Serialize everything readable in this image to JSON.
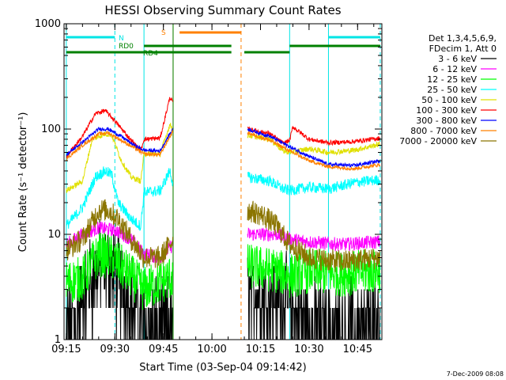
{
  "chart_data": {
    "type": "line",
    "title": "HESSI Observing Summary Count Rates",
    "xlabel": "Start Time (03-Sep-04 09:14:42)",
    "ylabel": "Count Rate (s⁻¹ detector⁻¹)",
    "yscale": "log",
    "xlim": [
      "09:15",
      "10:52"
    ],
    "ylim": [
      1,
      1000
    ],
    "x_ticks": [
      "09:15",
      "09:30",
      "09:45",
      "10:00",
      "10:15",
      "10:30",
      "10:45"
    ],
    "y_ticks": [
      "1",
      "10",
      "100",
      "1000"
    ],
    "footer_date": "7-Dec-2009 08:08",
    "legend_header": [
      "Det 1,3,4,5,6,9,",
      "FDecim 1, Att 0"
    ],
    "legend_position": "right",
    "flags": [
      {
        "label": "N",
        "color": "#00e5e5",
        "segments": [
          [
            "09:15",
            "09:30"
          ],
          [
            "10:36",
            "10:52"
          ]
        ]
      },
      {
        "label": "RD0",
        "color": "#008000",
        "segments": [
          [
            "09:39",
            "10:06"
          ],
          [
            "10:24",
            "10:52"
          ]
        ]
      },
      {
        "label": "RD4",
        "color": "#008000",
        "segments": [
          [
            "09:15",
            "10:06"
          ],
          [
            "10:10",
            "10:24"
          ]
        ]
      },
      {
        "label": "S",
        "color": "#ff8000",
        "segments": [
          [
            "09:50",
            "10:09"
          ]
        ]
      }
    ],
    "markers": [
      {
        "time": "09:15",
        "color": "#00e5e5",
        "style": "solid"
      },
      {
        "time": "09:30",
        "color": "#00e5e5",
        "style": "dashed"
      },
      {
        "time": "09:39",
        "color": "#00e5e5",
        "style": "solid"
      },
      {
        "time": "09:48",
        "color": "#ff8000",
        "style": "solid"
      },
      {
        "time": "09:48",
        "color": "#008000",
        "style": "solid"
      },
      {
        "time": "10:09",
        "color": "#ff8000",
        "style": "dashed"
      },
      {
        "time": "10:24",
        "color": "#00e5e5",
        "style": "solid"
      },
      {
        "time": "10:36",
        "color": "#00e5e5",
        "style": "solid"
      },
      {
        "time": "10:52",
        "color": "#00e5e5",
        "style": "dashed"
      }
    ],
    "gaps": [
      [
        "09:48",
        "10:11"
      ]
    ],
    "series": [
      {
        "name": "3 - 6 keV",
        "color": "#000000",
        "pts": [
          [
            "09:15",
            1.2
          ],
          [
            "09:20",
            2.3
          ],
          [
            "09:25",
            4.5
          ],
          [
            "09:29",
            4.5
          ],
          [
            "09:33",
            3
          ],
          [
            "09:39",
            1.3
          ],
          [
            "09:45",
            1.2
          ],
          [
            "09:48",
            1.3
          ],
          [
            "10:11",
            2.5
          ],
          [
            "10:16",
            2.5
          ],
          [
            "10:24",
            2.0
          ],
          [
            "10:30",
            1.3
          ],
          [
            "10:40",
            1.2
          ],
          [
            "10:52",
            1.3
          ]
        ],
        "noise": 0.8
      },
      {
        "name": "6 - 12 keV",
        "color": "#ff00ff",
        "pts": [
          [
            "09:15",
            8
          ],
          [
            "09:20",
            10
          ],
          [
            "09:25",
            11.5
          ],
          [
            "09:30",
            11
          ],
          [
            "09:35",
            9
          ],
          [
            "09:39",
            6.5
          ],
          [
            "09:44",
            6
          ],
          [
            "09:48",
            8
          ],
          [
            "10:11",
            10
          ],
          [
            "10:20",
            10
          ],
          [
            "10:24",
            9
          ],
          [
            "10:30",
            8.5
          ],
          [
            "10:40",
            8
          ],
          [
            "10:52",
            8.5
          ]
        ],
        "noise": 0.15
      },
      {
        "name": "12 - 25 keV",
        "color": "#00ff00",
        "pts": [
          [
            "09:15",
            3.5
          ],
          [
            "09:20",
            3.8
          ],
          [
            "09:25",
            6.5
          ],
          [
            "09:29",
            6
          ],
          [
            "09:35",
            4
          ],
          [
            "09:39",
            3
          ],
          [
            "09:44",
            3.5
          ],
          [
            "09:48",
            4
          ],
          [
            "10:11",
            5
          ],
          [
            "10:20",
            4.5
          ],
          [
            "10:24",
            4
          ],
          [
            "10:30",
            4.5
          ],
          [
            "10:40",
            4.2
          ],
          [
            "10:52",
            4.5
          ]
        ],
        "noise": 0.5
      },
      {
        "name": "25 - 50 keV",
        "color": "#00ffff",
        "pts": [
          [
            "09:15",
            12
          ],
          [
            "09:20",
            18
          ],
          [
            "09:24",
            35
          ],
          [
            "09:27",
            40
          ],
          [
            "09:29",
            37
          ],
          [
            "09:31",
            20
          ],
          [
            "09:35",
            14
          ],
          [
            "09:38",
            12
          ],
          [
            "09:39",
            25
          ],
          [
            "09:44",
            26
          ],
          [
            "09:47",
            40
          ],
          [
            "09:48",
            30
          ],
          [
            "10:11",
            35
          ],
          [
            "10:18",
            32
          ],
          [
            "10:22",
            27
          ],
          [
            "10:24",
            26
          ],
          [
            "10:30",
            28
          ],
          [
            "10:36",
            27
          ],
          [
            "10:44",
            31
          ],
          [
            "10:52",
            33
          ]
        ],
        "noise": 0.12
      },
      {
        "name": "50 - 100 keV",
        "color": "#e0e000",
        "pts": [
          [
            "09:15",
            26
          ],
          [
            "09:20",
            32
          ],
          [
            "09:23",
            80
          ],
          [
            "09:27",
            90
          ],
          [
            "09:29",
            88
          ],
          [
            "09:32",
            50
          ],
          [
            "09:35",
            35
          ],
          [
            "09:38",
            32
          ],
          [
            "09:39",
            58
          ],
          [
            "09:44",
            58
          ],
          [
            "09:47",
            110
          ],
          [
            "09:48",
            100
          ],
          [
            "10:11",
            87
          ],
          [
            "10:18",
            80
          ],
          [
            "10:22",
            62
          ],
          [
            "10:24",
            60
          ],
          [
            "10:30",
            65
          ],
          [
            "10:36",
            60
          ],
          [
            "10:44",
            63
          ],
          [
            "10:52",
            72
          ]
        ],
        "noise": 0.06
      },
      {
        "name": "100 - 300 keV",
        "color": "#ff0000",
        "pts": [
          [
            "09:15",
            55
          ],
          [
            "09:20",
            85
          ],
          [
            "09:24",
            140
          ],
          [
            "09:27",
            150
          ],
          [
            "09:30",
            120
          ],
          [
            "09:34",
            85
          ],
          [
            "09:38",
            62
          ],
          [
            "09:39",
            80
          ],
          [
            "09:44",
            82
          ],
          [
            "09:47",
            200
          ],
          [
            "09:48",
            180
          ],
          [
            "10:11",
            100
          ],
          [
            "10:18",
            90
          ],
          [
            "10:22",
            73
          ],
          [
            "10:24",
            78
          ],
          [
            "10:25",
            105
          ],
          [
            "10:30",
            80
          ],
          [
            "10:36",
            74
          ],
          [
            "10:44",
            76
          ],
          [
            "10:52",
            82
          ]
        ],
        "noise": 0.05
      },
      {
        "name": "300 - 800 keV",
        "color": "#0000ff",
        "pts": [
          [
            "09:15",
            57
          ],
          [
            "09:20",
            75
          ],
          [
            "09:25",
            100
          ],
          [
            "09:28",
            100
          ],
          [
            "09:32",
            85
          ],
          [
            "09:36",
            70
          ],
          [
            "09:39",
            63
          ],
          [
            "09:44",
            62
          ],
          [
            "09:47",
            90
          ],
          [
            "09:48",
            100
          ],
          [
            "10:11",
            100
          ],
          [
            "10:18",
            85
          ],
          [
            "10:24",
            68
          ],
          [
            "10:30",
            55
          ],
          [
            "10:36",
            46
          ],
          [
            "10:44",
            45
          ],
          [
            "10:52",
            50
          ]
        ],
        "noise": 0.04
      },
      {
        "name": "800 - 7000 keV",
        "color": "#ff8000",
        "pts": [
          [
            "09:15",
            52
          ],
          [
            "09:20",
            70
          ],
          [
            "09:25",
            90
          ],
          [
            "09:28",
            92
          ],
          [
            "09:32",
            78
          ],
          [
            "09:36",
            66
          ],
          [
            "09:39",
            58
          ],
          [
            "09:44",
            57
          ],
          [
            "09:47",
            85
          ],
          [
            "09:48",
            95
          ],
          [
            "10:11",
            92
          ],
          [
            "10:18",
            78
          ],
          [
            "10:24",
            62
          ],
          [
            "10:30",
            50
          ],
          [
            "10:36",
            44
          ],
          [
            "10:44",
            42
          ],
          [
            "10:52",
            46
          ]
        ],
        "noise": 0.04
      },
      {
        "name": "7000 - 20000 keV",
        "color": "#8b7500",
        "pts": [
          [
            "09:15",
            7
          ],
          [
            "09:20",
            9
          ],
          [
            "09:25",
            17
          ],
          [
            "09:28",
            17
          ],
          [
            "09:31",
            14
          ],
          [
            "09:35",
            9
          ],
          [
            "09:39",
            6
          ],
          [
            "09:44",
            6
          ],
          [
            "09:48",
            9
          ],
          [
            "10:11",
            17
          ],
          [
            "10:16",
            15
          ],
          [
            "10:20",
            12
          ],
          [
            "10:24",
            8
          ],
          [
            "10:30",
            6
          ],
          [
            "10:40",
            5.5
          ],
          [
            "10:52",
            6
          ]
        ],
        "noise": 0.25
      }
    ]
  }
}
